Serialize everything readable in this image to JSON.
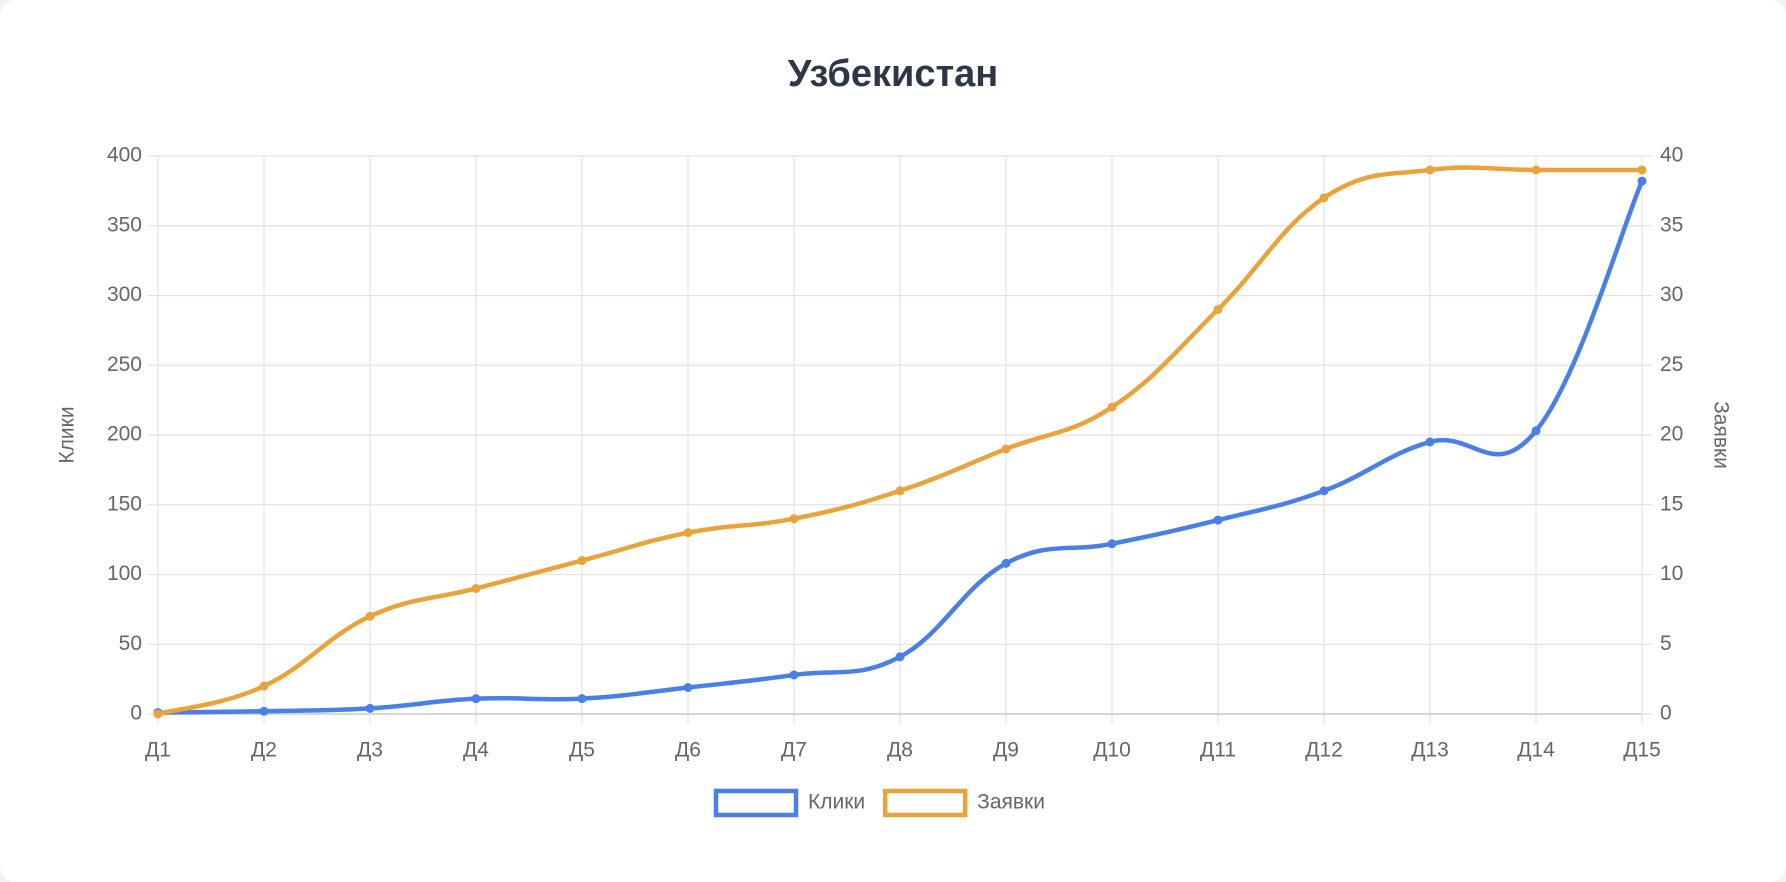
{
  "chart_data": {
    "type": "line",
    "title": "Узбекистан",
    "ylabel": "Клики",
    "y2label": "Заявки",
    "categories": [
      "Д1",
      "Д2",
      "Д3",
      "Д4",
      "Д5",
      "Д6",
      "Д7",
      "Д8",
      "Д9",
      "Д10",
      "Д11",
      "Д12",
      "Д13",
      "Д14",
      "Д15"
    ],
    "series": [
      {
        "name": "Клики",
        "color": "#4a7fe6",
        "values": [
          1,
          2,
          4,
          11,
          11,
          19,
          28,
          41,
          108,
          122,
          139,
          160,
          195,
          203,
          382
        ]
      },
      {
        "name": "Заявки",
        "color": "#eaa33b",
        "axis": "y2",
        "values": [
          0,
          2,
          7,
          9,
          11,
          13,
          14,
          16,
          19,
          22,
          29,
          37,
          39,
          39,
          39
        ]
      }
    ],
    "ylim": [
      0,
      400
    ],
    "yticks": [
      0,
      50,
      100,
      150,
      200,
      250,
      300,
      350,
      400
    ],
    "y2lim": [
      0,
      40
    ],
    "y2ticks": [
      0,
      5,
      10,
      15,
      20,
      25,
      30,
      35,
      40
    ],
    "grid": true,
    "legend": "bottom"
  }
}
